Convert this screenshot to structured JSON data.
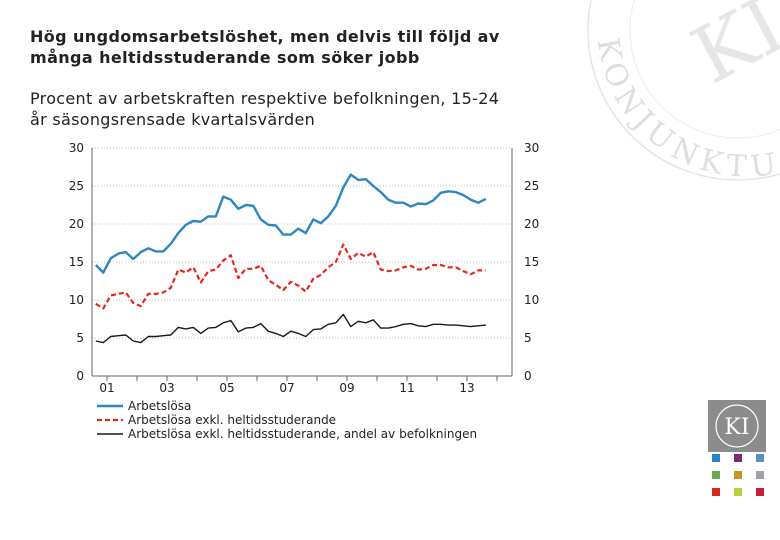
{
  "header": {
    "title_line1": "Hög ungdomsarbetslöshet, men delvis till följd av",
    "title_line2": "många heltidsstuderande som söker jobb",
    "subtitle_line1": "Procent av arbetskraften respektive befolkningen, 15-24",
    "subtitle_line2": "år säsongsrensade kvartalsvärden"
  },
  "watermark": {
    "text": "KONJUNKTURINSTITUTET"
  },
  "logo": {
    "text": "KI"
  },
  "colors": {
    "blue": "#2e86c1",
    "red": "#e8251e",
    "black": "#1a1a1a",
    "axis": "#666666",
    "grid": "#bfbfbf",
    "swatches": [
      "#2e86c1",
      "#7b2d6b",
      "#5a8fc2",
      "#6aa84f",
      "#c79522",
      "#9aa0a6",
      "#d9241c",
      "#b5d334",
      "#c41e3a"
    ]
  },
  "chart_data": {
    "type": "line",
    "title": "",
    "xlabel": "",
    "ylabel": "",
    "ylim": [
      0,
      30
    ],
    "yticks": [
      0,
      5,
      10,
      15,
      20,
      25,
      30
    ],
    "xlim": [
      2000.5,
      2014.5
    ],
    "xticks": [
      {
        "label": "01",
        "value": 2001.0
      },
      {
        "label": "03",
        "value": 2003.0
      },
      {
        "label": "05",
        "value": 2005.0
      },
      {
        "label": "07",
        "value": 2007.0
      },
      {
        "label": "09",
        "value": 2009.0
      },
      {
        "label": "11",
        "value": 2011.0
      },
      {
        "label": "13",
        "value": 2013.0
      }
    ],
    "x_start": 2000.625,
    "x_step": 0.25,
    "series": [
      {
        "name": "Arbetslösa",
        "style": "solid",
        "values": [
          14.6,
          13.6,
          15.5,
          16.1,
          16.3,
          15.4,
          16.3,
          16.8,
          16.4,
          16.4,
          17.4,
          18.8,
          19.9,
          20.4,
          20.3,
          21.0,
          21.0,
          23.6,
          23.2,
          22.0,
          22.5,
          22.4,
          20.6,
          19.9,
          19.8,
          18.6,
          18.6,
          19.4,
          18.8,
          20.6,
          20.1,
          21.0,
          22.4,
          24.8,
          26.5,
          25.8,
          25.9,
          25.0,
          24.2,
          23.2,
          22.8,
          22.8,
          22.3,
          22.7,
          22.6,
          23.1,
          24.1,
          24.3,
          24.2,
          23.8,
          23.2,
          22.8,
          23.3
        ]
      },
      {
        "name": "Arbetslösa exkl. heltidsstuderande",
        "style": "dashed",
        "values": [
          9.5,
          8.9,
          10.6,
          10.8,
          11.0,
          9.6,
          9.2,
          10.8,
          10.8,
          11.0,
          11.6,
          14.0,
          13.6,
          14.3,
          12.3,
          13.8,
          14.0,
          15.2,
          15.9,
          12.9,
          14.1,
          14.1,
          14.5,
          12.6,
          12.0,
          11.3,
          12.4,
          11.9,
          11.1,
          12.8,
          13.3,
          14.3,
          15.0,
          17.3,
          15.4,
          16.2,
          15.7,
          16.3,
          14.0,
          13.8,
          13.9,
          14.3,
          14.5,
          14.0,
          14.1,
          14.6,
          14.6,
          14.3,
          14.3,
          13.8,
          13.4,
          13.9,
          13.9
        ]
      },
      {
        "name": "Arbetslösa exkl. heltidsstuderande, andel av befolkningen",
        "style": "solid",
        "values": [
          4.6,
          4.4,
          5.2,
          5.3,
          5.4,
          4.6,
          4.4,
          5.2,
          5.2,
          5.3,
          5.4,
          6.4,
          6.2,
          6.4,
          5.6,
          6.3,
          6.4,
          7.0,
          7.3,
          5.8,
          6.3,
          6.4,
          6.9,
          5.9,
          5.6,
          5.2,
          5.9,
          5.6,
          5.2,
          6.1,
          6.2,
          6.8,
          7.0,
          8.1,
          6.5,
          7.2,
          7.0,
          7.4,
          6.3,
          6.3,
          6.5,
          6.8,
          6.9,
          6.6,
          6.5,
          6.8,
          6.8,
          6.7,
          6.7,
          6.6,
          6.5,
          6.6,
          6.7
        ]
      }
    ],
    "legend": [
      {
        "label": "Arbetslösa"
      },
      {
        "label": "Arbetslösa exkl. heltidsstuderande"
      },
      {
        "label": "Arbetslösa exkl. heltidsstuderande, andel av befolkningen"
      }
    ]
  }
}
